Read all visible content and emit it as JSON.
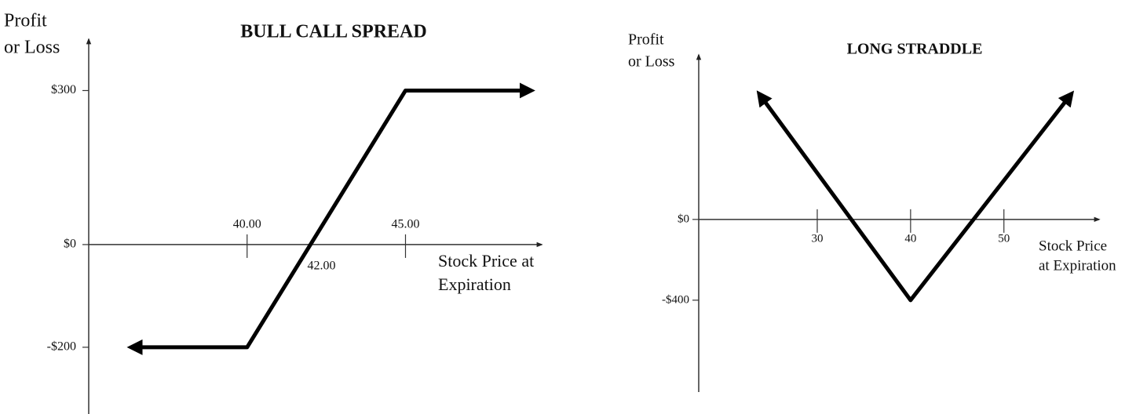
{
  "chart_data": [
    {
      "type": "line",
      "title": "BULL CALL SPREAD",
      "ylabel": [
        "Profit",
        "or Loss"
      ],
      "xlabel": [
        "Stock Price at",
        "Expiration"
      ],
      "x": [
        36.4,
        40,
        45,
        48.9
      ],
      "values": [
        -200,
        -200,
        300,
        300
      ],
      "color": "#000000",
      "xlim": [
        35,
        49.3
      ],
      "ylim": [
        -330,
        400
      ],
      "xticks": [
        {
          "value": 40,
          "label": "40.00"
        },
        {
          "value": 45,
          "label": "45.00"
        }
      ],
      "yticks": [
        {
          "value": 300,
          "label": "$300"
        },
        {
          "value": 0,
          "label": "$0"
        },
        {
          "value": -200,
          "label": "-$200"
        }
      ],
      "annotations": [
        {
          "x": 42,
          "text": "42.00"
        }
      ]
    },
    {
      "type": "line",
      "title": "LONG STRADDLE",
      "ylabel": [
        "Profit",
        "or Loss"
      ],
      "xlabel": [
        "Stock Price",
        "at Expiration"
      ],
      "x": [
        23.9,
        40,
        57.1
      ],
      "values": [
        614,
        -400,
        614
      ],
      "color": "#000000",
      "xlim": [
        17.3,
        60.2
      ],
      "ylim": [
        -855,
        815
      ],
      "xticks": [
        30,
        40,
        50
      ],
      "yticks": [
        {
          "value": 0,
          "label": "$0"
        },
        {
          "value": -400,
          "label": "-$400"
        }
      ]
    }
  ]
}
